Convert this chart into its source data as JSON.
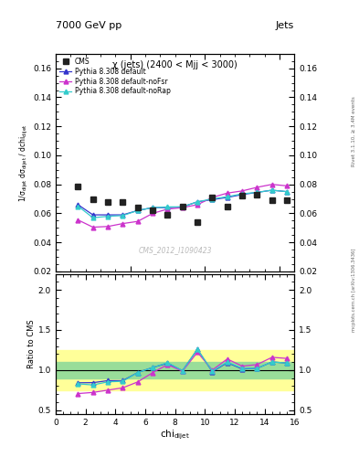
{
  "title_top_left": "7000 GeV pp",
  "title_top_right": "Jets",
  "plot_title": "χ (jets) (2400 < Mjj < 3000)",
  "watermark": "CMS_2012_I1090423",
  "rivet_label": "Rivet 3.1.10, ≥ 3.4M events",
  "arxiv_label": "mcplots.cern.ch [arXiv:1306.3436]",
  "ylabel_main": "1/σ$_\\mathregular{dijet}$ dσ$_\\mathregular{dijet}$ / dchi$_\\mathregular{dijet}$",
  "ylabel_ratio": "Ratio to CMS",
  "xlabel": "chi$_\\mathregular{dijet}$",
  "xlim": [
    0,
    16
  ],
  "ylim_main": [
    0.02,
    0.17
  ],
  "ylim_ratio": [
    0.45,
    2.2
  ],
  "cms_x": [
    1.5,
    2.5,
    3.5,
    4.5,
    5.5,
    6.5,
    7.5,
    8.5,
    9.5,
    10.5,
    11.5,
    12.5,
    13.5,
    14.5,
    15.5
  ],
  "cms_y": [
    0.0785,
    0.07,
    0.068,
    0.068,
    0.064,
    0.062,
    0.059,
    0.065,
    0.054,
    0.071,
    0.065,
    0.072,
    0.073,
    0.069,
    0.069
  ],
  "default_x": [
    1.5,
    2.5,
    3.5,
    4.5,
    5.5,
    6.5,
    7.5,
    8.5,
    9.5,
    10.5,
    11.5,
    12.5,
    13.5,
    14.5,
    15.5
  ],
  "default_y": [
    0.066,
    0.059,
    0.059,
    0.059,
    0.062,
    0.064,
    0.064,
    0.0645,
    0.068,
    0.0695,
    0.071,
    0.073,
    0.0745,
    0.076,
    0.075
  ],
  "noFsr_x": [
    1.5,
    2.5,
    3.5,
    4.5,
    5.5,
    6.5,
    7.5,
    8.5,
    9.5,
    10.5,
    11.5,
    12.5,
    13.5,
    14.5,
    15.5
  ],
  "noFsr_y": [
    0.0555,
    0.0505,
    0.051,
    0.053,
    0.0545,
    0.06,
    0.063,
    0.064,
    0.066,
    0.071,
    0.074,
    0.0755,
    0.078,
    0.08,
    0.079
  ],
  "noRap_x": [
    1.5,
    2.5,
    3.5,
    4.5,
    5.5,
    6.5,
    7.5,
    8.5,
    9.5,
    10.5,
    11.5,
    12.5,
    13.5,
    14.5,
    15.5
  ],
  "noRap_y": [
    0.065,
    0.057,
    0.058,
    0.0585,
    0.062,
    0.064,
    0.0645,
    0.0645,
    0.068,
    0.07,
    0.0715,
    0.0735,
    0.0745,
    0.076,
    0.075
  ],
  "ratio_default_y": [
    0.841,
    0.843,
    0.868,
    0.868,
    0.969,
    1.032,
    1.085,
    0.992,
    1.259,
    0.979,
    1.092,
    1.014,
    1.021,
    1.101,
    1.087
  ],
  "ratio_noFsr_y": [
    0.707,
    0.721,
    0.75,
    0.779,
    0.852,
    0.968,
    1.068,
    0.985,
    1.222,
    1.0,
    1.138,
    1.049,
    1.068,
    1.159,
    1.145
  ],
  "ratio_noRap_y": [
    0.828,
    0.814,
    0.853,
    0.86,
    0.969,
    1.032,
    1.093,
    0.992,
    1.259,
    0.986,
    1.1,
    1.021,
    1.021,
    1.101,
    1.087
  ],
  "green_band_lo": 0.9,
  "green_band_hi": 1.1,
  "yellow_band_lo": 0.75,
  "yellow_band_hi": 1.25,
  "color_default": "#3333cc",
  "color_noFsr": "#cc33cc",
  "color_noRap": "#33cccc",
  "color_cms": "#222222",
  "bg_color": "#ffffff",
  "yticks_main": [
    0.02,
    0.04,
    0.06,
    0.08,
    0.1,
    0.12,
    0.14,
    0.16
  ],
  "xticks": [
    0,
    2,
    4,
    6,
    8,
    10,
    12,
    14,
    16
  ],
  "yticks_ratio": [
    0.5,
    1.0,
    1.5,
    2.0
  ]
}
